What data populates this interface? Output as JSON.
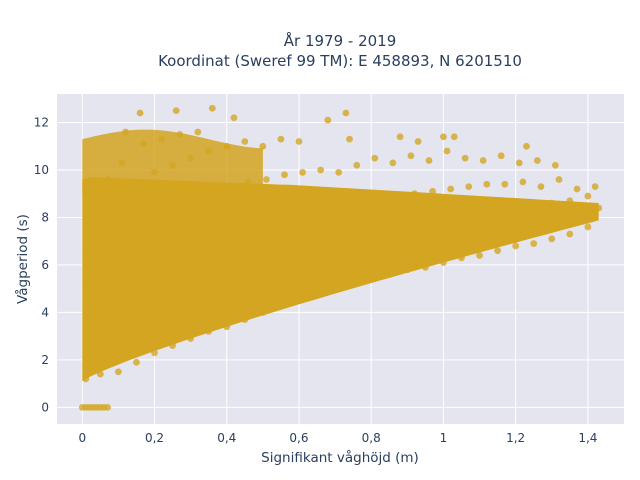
{
  "chart_data": {
    "type": "scatter",
    "title_lines": [
      "År 1979 - 2019",
      "Koordinat (Sweref 99 TM): E 458893, N 6201510"
    ],
    "xlabel": "Signifikant våghöjd (m)",
    "ylabel": "Vågperiod (s)",
    "xlim": [
      -0.07,
      1.5
    ],
    "ylim": [
      -0.7,
      13.2
    ],
    "x_ticks": [
      0,
      0.2,
      0.4,
      0.6,
      0.8,
      1,
      1.2,
      1.4
    ],
    "x_tick_labels": [
      "0",
      "0,2",
      "0,4",
      "0,6",
      "0,8",
      "1",
      "1,2",
      "1,4"
    ],
    "y_ticks": [
      0,
      2,
      4,
      6,
      8,
      10,
      12
    ],
    "y_tick_labels": [
      "0",
      "2",
      "4",
      "6",
      "8",
      "10",
      "12"
    ],
    "grid": true,
    "series": [
      {
        "color": "#d4a520",
        "points": [
          [
            0.0,
            0.0
          ],
          [
            0.01,
            0.0
          ],
          [
            0.02,
            0.0
          ],
          [
            0.03,
            0.0
          ],
          [
            0.04,
            0.0
          ],
          [
            0.05,
            0.0
          ],
          [
            0.06,
            0.0
          ],
          [
            0.07,
            0.0
          ],
          [
            0.01,
            1.2
          ],
          [
            0.02,
            1.6
          ],
          [
            0.01,
            2.4
          ],
          [
            0.03,
            3.0
          ],
          [
            0.02,
            3.9
          ],
          [
            0.01,
            5.2
          ],
          [
            0.02,
            6.6
          ],
          [
            0.03,
            8.0
          ],
          [
            0.02,
            9.3
          ],
          [
            0.05,
            1.4
          ],
          [
            0.06,
            2.8
          ],
          [
            0.07,
            4.5
          ],
          [
            0.05,
            6.1
          ],
          [
            0.08,
            7.4
          ],
          [
            0.06,
            9.0
          ],
          [
            0.07,
            9.6
          ],
          [
            0.1,
            1.5
          ],
          [
            0.1,
            2.4
          ],
          [
            0.11,
            3.7
          ],
          [
            0.09,
            5.0
          ],
          [
            0.11,
            6.5
          ],
          [
            0.1,
            8.2
          ],
          [
            0.11,
            10.3
          ],
          [
            0.12,
            11.6
          ],
          [
            0.15,
            1.9
          ],
          [
            0.16,
            3.0
          ],
          [
            0.15,
            4.6
          ],
          [
            0.17,
            6.2
          ],
          [
            0.16,
            7.8
          ],
          [
            0.15,
            9.4
          ],
          [
            0.17,
            11.1
          ],
          [
            0.16,
            12.4
          ],
          [
            0.2,
            2.3
          ],
          [
            0.21,
            3.5
          ],
          [
            0.2,
            5.2
          ],
          [
            0.22,
            6.8
          ],
          [
            0.21,
            8.3
          ],
          [
            0.2,
            9.9
          ],
          [
            0.22,
            11.3
          ],
          [
            0.25,
            2.6
          ],
          [
            0.26,
            3.9
          ],
          [
            0.25,
            5.6
          ],
          [
            0.27,
            7.1
          ],
          [
            0.26,
            8.6
          ],
          [
            0.25,
            10.2
          ],
          [
            0.27,
            11.5
          ],
          [
            0.26,
            12.5
          ],
          [
            0.3,
            2.9
          ],
          [
            0.31,
            4.2
          ],
          [
            0.3,
            5.9
          ],
          [
            0.32,
            7.4
          ],
          [
            0.31,
            8.9
          ],
          [
            0.3,
            10.5
          ],
          [
            0.32,
            11.6
          ],
          [
            0.35,
            3.2
          ],
          [
            0.36,
            4.4
          ],
          [
            0.35,
            6.1
          ],
          [
            0.37,
            7.6
          ],
          [
            0.36,
            9.1
          ],
          [
            0.35,
            10.8
          ],
          [
            0.36,
            12.6
          ],
          [
            0.4,
            3.4
          ],
          [
            0.41,
            4.7
          ],
          [
            0.4,
            6.3
          ],
          [
            0.42,
            7.8
          ],
          [
            0.41,
            9.3
          ],
          [
            0.4,
            11.0
          ],
          [
            0.42,
            12.2
          ],
          [
            0.45,
            3.7
          ],
          [
            0.46,
            4.9
          ],
          [
            0.45,
            6.5
          ],
          [
            0.47,
            8.0
          ],
          [
            0.46,
            9.5
          ],
          [
            0.45,
            11.2
          ],
          [
            0.5,
            4.0
          ],
          [
            0.51,
            5.2
          ],
          [
            0.5,
            6.7
          ],
          [
            0.52,
            8.1
          ],
          [
            0.51,
            9.6
          ],
          [
            0.5,
            11.0
          ],
          [
            0.55,
            4.3
          ],
          [
            0.56,
            5.4
          ],
          [
            0.55,
            6.9
          ],
          [
            0.57,
            8.3
          ],
          [
            0.56,
            9.8
          ],
          [
            0.55,
            11.3
          ],
          [
            0.6,
            4.5
          ],
          [
            0.61,
            5.6
          ],
          [
            0.6,
            7.0
          ],
          [
            0.62,
            8.4
          ],
          [
            0.61,
            9.9
          ],
          [
            0.6,
            11.2
          ],
          [
            0.65,
            4.8
          ],
          [
            0.66,
            5.8
          ],
          [
            0.65,
            7.2
          ],
          [
            0.67,
            8.5
          ],
          [
            0.66,
            10.0
          ],
          [
            0.68,
            12.1
          ],
          [
            0.7,
            5.0
          ],
          [
            0.71,
            6.0
          ],
          [
            0.7,
            7.3
          ],
          [
            0.72,
            8.6
          ],
          [
            0.71,
            9.9
          ],
          [
            0.73,
            12.4
          ],
          [
            0.75,
            5.2
          ],
          [
            0.76,
            6.2
          ],
          [
            0.75,
            7.5
          ],
          [
            0.77,
            8.7
          ],
          [
            0.76,
            10.2
          ],
          [
            0.74,
            11.3
          ],
          [
            0.8,
            5.4
          ],
          [
            0.81,
            6.3
          ],
          [
            0.8,
            7.6
          ],
          [
            0.82,
            8.8
          ],
          [
            0.81,
            10.5
          ],
          [
            0.85,
            5.6
          ],
          [
            0.86,
            6.5
          ],
          [
            0.85,
            7.7
          ],
          [
            0.87,
            8.9
          ],
          [
            0.86,
            10.3
          ],
          [
            0.88,
            11.4
          ],
          [
            0.9,
            5.8
          ],
          [
            0.91,
            6.6
          ],
          [
            0.9,
            7.8
          ],
          [
            0.92,
            9.0
          ],
          [
            0.91,
            10.6
          ],
          [
            0.93,
            11.2
          ],
          [
            0.95,
            5.9
          ],
          [
            0.96,
            6.8
          ],
          [
            0.95,
            7.9
          ],
          [
            0.97,
            9.1
          ],
          [
            0.96,
            10.4
          ],
          [
            1.0,
            6.1
          ],
          [
            1.01,
            6.9
          ],
          [
            1.0,
            8.0
          ],
          [
            1.02,
            9.2
          ],
          [
            1.01,
            10.8
          ],
          [
            1.0,
            11.4
          ],
          [
            1.03,
            11.4
          ],
          [
            1.05,
            6.3
          ],
          [
            1.06,
            7.1
          ],
          [
            1.05,
            8.1
          ],
          [
            1.07,
            9.3
          ],
          [
            1.06,
            10.5
          ],
          [
            1.1,
            6.4
          ],
          [
            1.11,
            7.2
          ],
          [
            1.1,
            8.2
          ],
          [
            1.12,
            9.4
          ],
          [
            1.11,
            10.4
          ],
          [
            1.15,
            6.6
          ],
          [
            1.16,
            7.4
          ],
          [
            1.15,
            8.3
          ],
          [
            1.17,
            9.4
          ],
          [
            1.16,
            10.6
          ],
          [
            1.2,
            6.8
          ],
          [
            1.21,
            7.5
          ],
          [
            1.2,
            8.4
          ],
          [
            1.22,
            9.5
          ],
          [
            1.21,
            10.3
          ],
          [
            1.23,
            11.0
          ],
          [
            1.25,
            6.9
          ],
          [
            1.26,
            7.6
          ],
          [
            1.25,
            8.5
          ],
          [
            1.27,
            9.3
          ],
          [
            1.26,
            10.4
          ],
          [
            1.3,
            7.1
          ],
          [
            1.31,
            7.8
          ],
          [
            1.3,
            8.6
          ],
          [
            1.32,
            9.6
          ],
          [
            1.31,
            10.2
          ],
          [
            1.35,
            7.3
          ],
          [
            1.36,
            8.0
          ],
          [
            1.35,
            8.7
          ],
          [
            1.37,
            9.2
          ],
          [
            1.4,
            7.6
          ],
          [
            1.41,
            8.2
          ],
          [
            1.4,
            8.9
          ],
          [
            1.42,
            9.3
          ],
          [
            1.43,
            8.4
          ]
        ]
      }
    ]
  }
}
